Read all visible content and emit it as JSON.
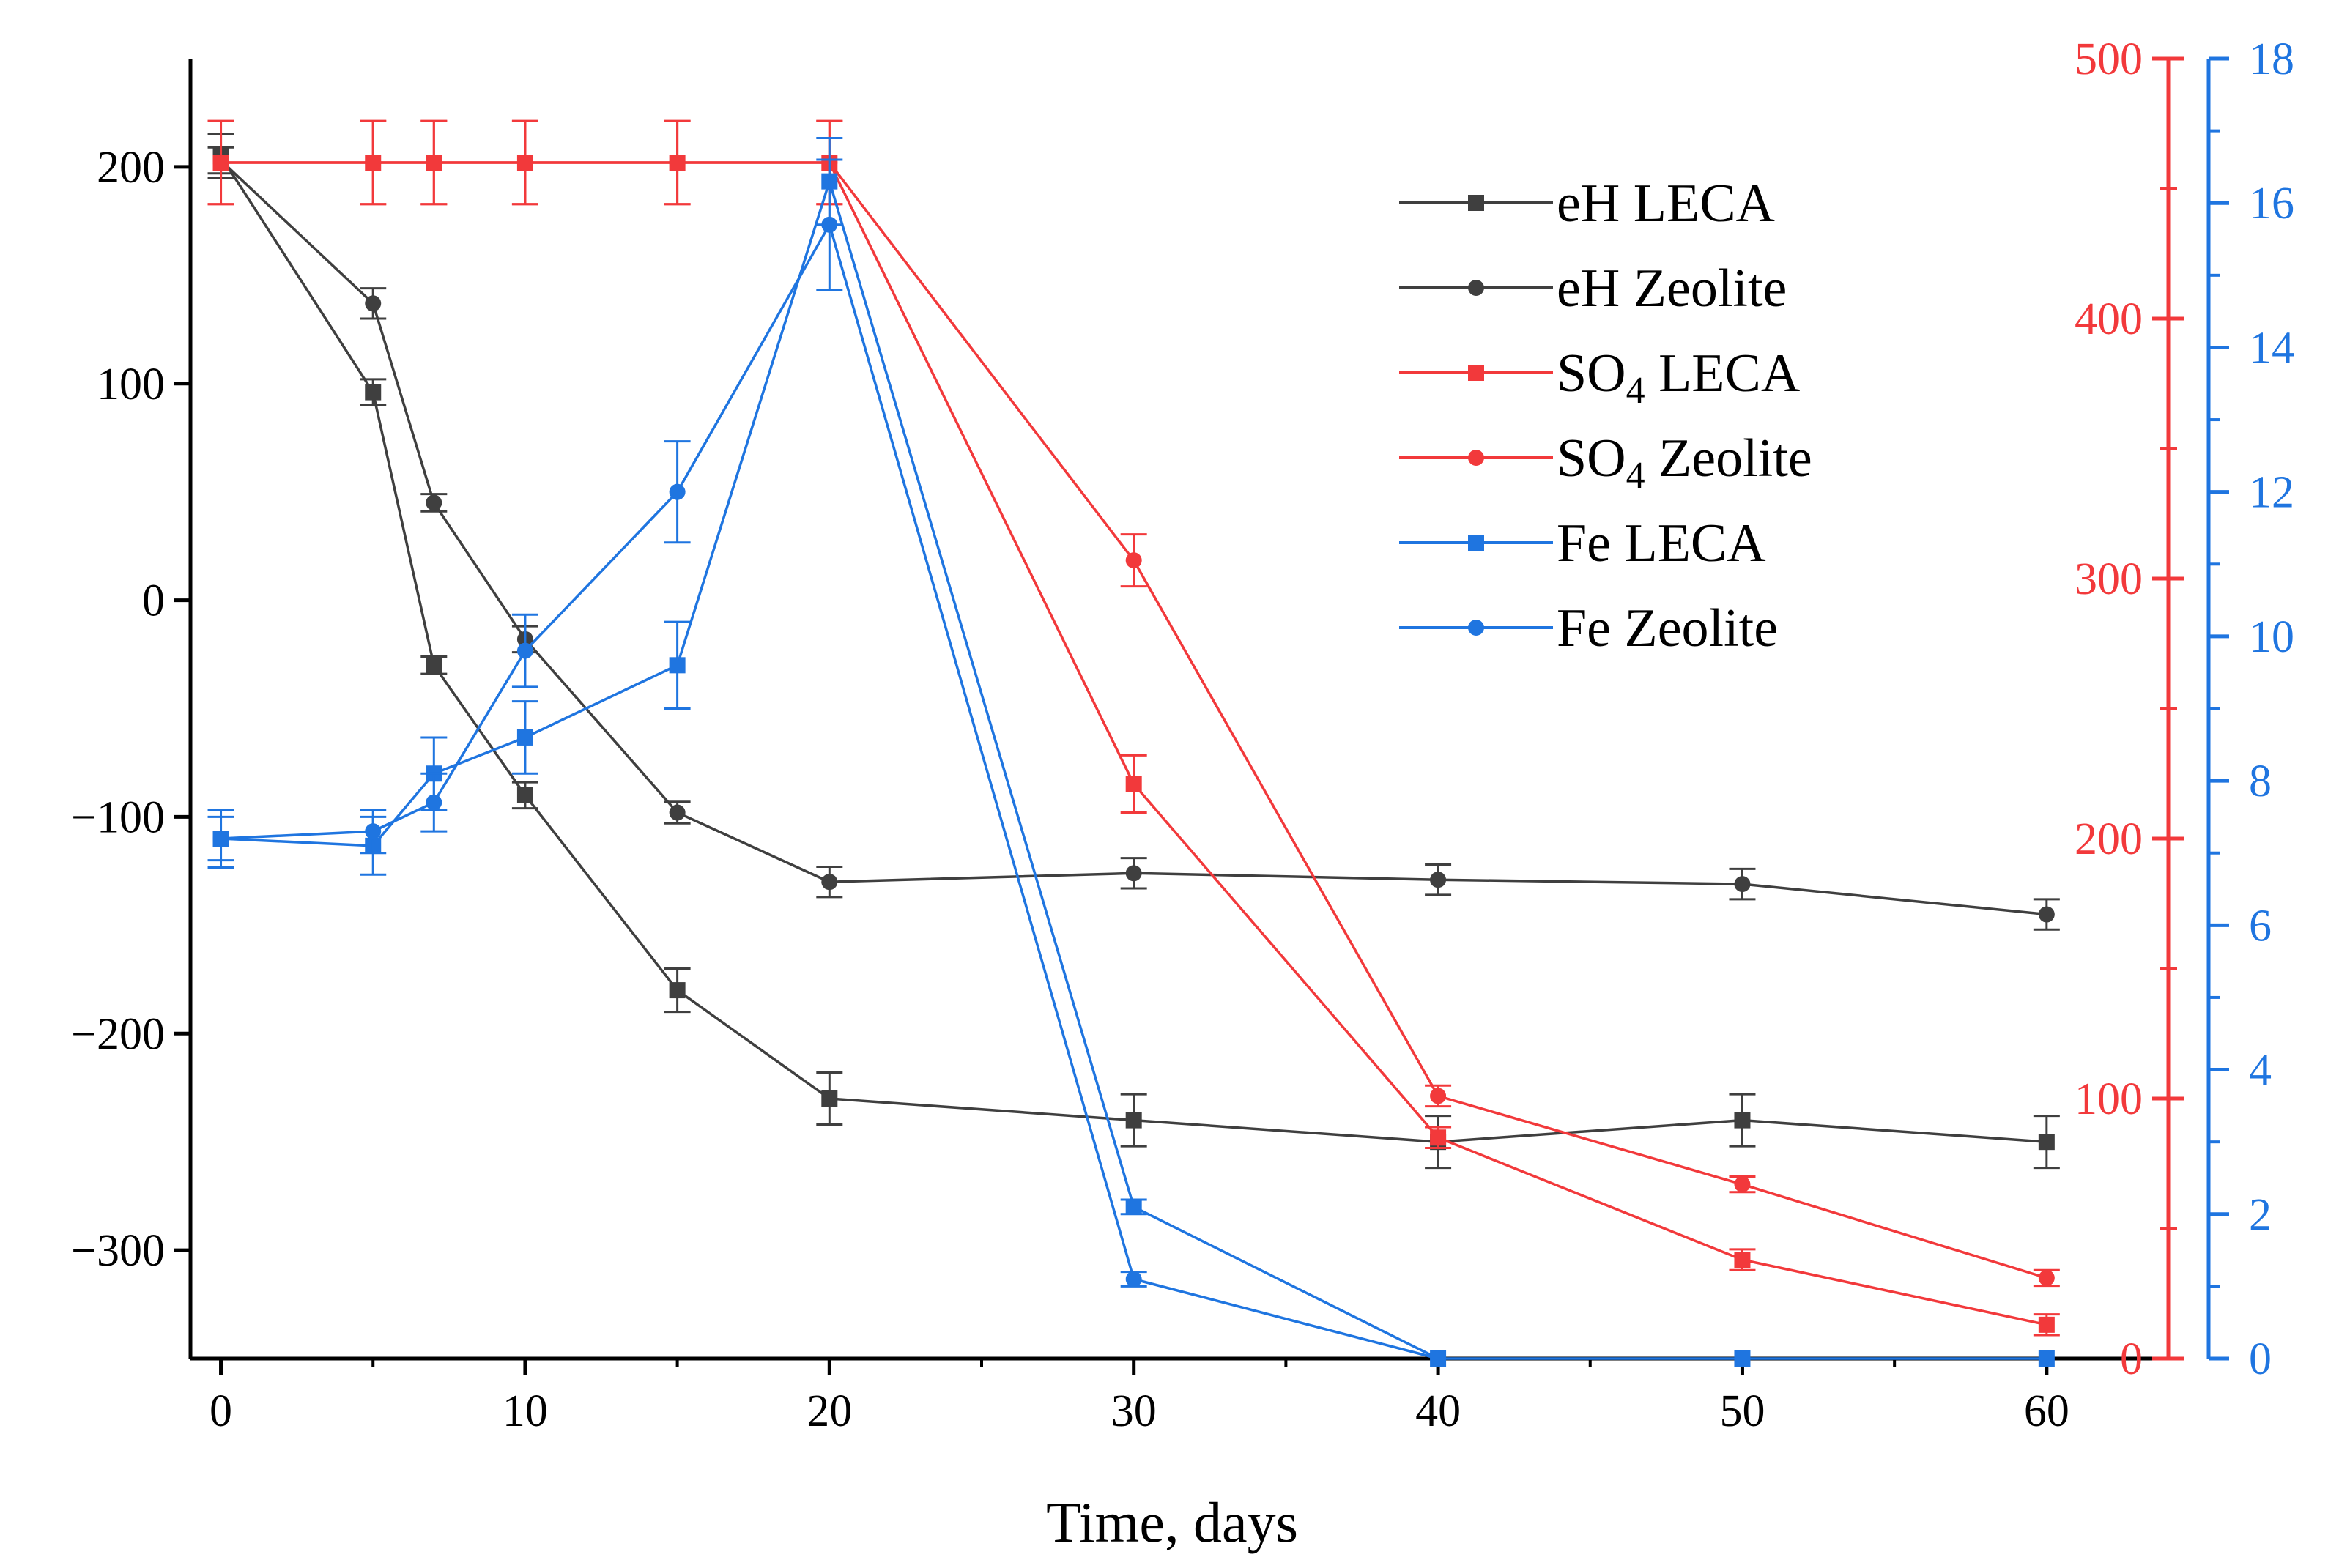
{
  "chart_data": {
    "type": "line",
    "title": "",
    "xlabel": "Time, days",
    "ylabel": "",
    "xlim": [
      -1,
      64
    ],
    "axes": {
      "left": {
        "range": [
          -350,
          250
        ],
        "ticks": [
          200,
          100,
          0,
          -100,
          -200,
          -300
        ],
        "tick_labels": [
          "200",
          "100",
          "0",
          "−100",
          "−200",
          "−300"
        ],
        "color": "#000000"
      },
      "red": {
        "range": [
          0,
          500
        ],
        "ticks": [
          500,
          400,
          300,
          200,
          100,
          0
        ],
        "tick_labels": [
          "500",
          "400",
          "300",
          "200",
          "100",
          "0"
        ],
        "color": "#f2393b"
      },
      "blue": {
        "range": [
          0,
          18
        ],
        "ticks": [
          18,
          16,
          14,
          12,
          10,
          8,
          6,
          4,
          2,
          0
        ],
        "tick_labels": [
          "18",
          "16",
          "14",
          "12",
          "10",
          "8",
          "6",
          "4",
          "2",
          "0"
        ],
        "color": "#1f75e0"
      }
    },
    "x_ticks": [
      0,
      10,
      20,
      30,
      40,
      50,
      60
    ],
    "x_tick_labels": [
      "0",
      "10",
      "20",
      "30",
      "40",
      "50",
      "60"
    ],
    "legend_position": "top-right",
    "series": [
      {
        "name": "eH LECA",
        "legend_base": "eH LECA",
        "legend_sub": "",
        "legend_rest": "",
        "axis": "left",
        "color": "#3f3f3f",
        "marker": "square",
        "x": [
          0,
          5,
          7,
          10,
          15,
          20,
          30,
          40,
          50,
          60
        ],
        "y": [
          205,
          96,
          -30,
          -90,
          -180,
          -230,
          -240,
          -250,
          -240,
          -250
        ],
        "err": [
          10,
          6,
          4,
          6,
          10,
          12,
          12,
          12,
          12,
          12
        ]
      },
      {
        "name": "eH Zeolite",
        "legend_base": "eH Zeolite",
        "legend_sub": "",
        "legend_rest": "",
        "axis": "left",
        "color": "#3f3f3f",
        "marker": "circle",
        "x": [
          0,
          5,
          7,
          10,
          15,
          20,
          30,
          40,
          50,
          60
        ],
        "y": [
          203,
          137,
          45,
          -18,
          -98,
          -130,
          -126,
          -129,
          -131,
          -145
        ],
        "err": [
          6,
          7,
          4,
          6,
          5,
          7,
          7,
          7,
          7,
          7
        ]
      },
      {
        "name": "SO4 LECA",
        "legend_base": "SO",
        "legend_sub": "4",
        "legend_rest": " LECA",
        "axis": "red",
        "color": "#f2393b",
        "marker": "square",
        "x": [
          0,
          5,
          7,
          10,
          15,
          20,
          30,
          40,
          50,
          60
        ],
        "y": [
          460,
          460,
          460,
          460,
          460,
          460,
          221,
          85,
          38,
          13
        ],
        "err": [
          16,
          16,
          16,
          16,
          16,
          16,
          11,
          4,
          4,
          4
        ]
      },
      {
        "name": "SO4 Zeolite",
        "legend_base": "SO",
        "legend_sub": "4",
        "legend_rest": " Zeolite",
        "axis": "red",
        "color": "#f2393b",
        "marker": "circle",
        "x": [
          0,
          5,
          7,
          10,
          15,
          20,
          30,
          40,
          50,
          60
        ],
        "y": [
          460,
          460,
          460,
          460,
          460,
          460,
          307,
          101,
          67,
          31
        ],
        "err": [
          16,
          16,
          16,
          16,
          16,
          16,
          10,
          4,
          3,
          3
        ]
      },
      {
        "name": "Fe LECA",
        "legend_base": "Fe LECA",
        "legend_sub": "",
        "legend_rest": "",
        "axis": "blue",
        "color": "#1f75e0",
        "marker": "square",
        "x": [
          0,
          5,
          7,
          10,
          15,
          20,
          30,
          40,
          50,
          60
        ],
        "y": [
          7.2,
          7.1,
          8.1,
          8.6,
          9.6,
          16.3,
          2.1,
          0,
          0,
          0
        ],
        "err": [
          0.4,
          0.4,
          0.5,
          0.5,
          0.6,
          0.6,
          0.1,
          0,
          0,
          0
        ]
      },
      {
        "name": "Fe Zeolite",
        "legend_base": "Fe Zeolite",
        "legend_sub": "",
        "legend_rest": "",
        "axis": "blue",
        "color": "#1f75e0",
        "marker": "circle",
        "x": [
          0,
          5,
          7,
          10,
          15,
          20,
          30,
          40
        ],
        "y": [
          7.2,
          7.3,
          7.7,
          9.8,
          12.0,
          15.7,
          1.1,
          0
        ],
        "err": [
          0.3,
          0.3,
          0.4,
          0.5,
          0.7,
          0.9,
          0.1,
          0
        ]
      }
    ]
  }
}
